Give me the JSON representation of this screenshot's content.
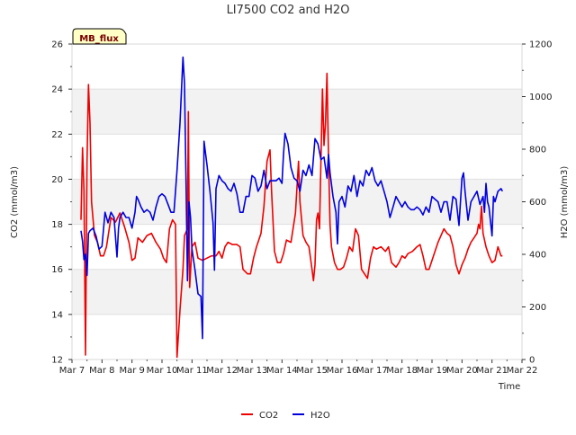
{
  "chart_data": {
    "type": "line",
    "title": "LI7500 CO2 and H2O",
    "badge": "MB_flux",
    "xlabel": "Time",
    "ylabel_left": "CO2 (mmol/m3)",
    "ylabel_right": "H2O (mmol/m3)",
    "x_range": [
      7,
      22
    ],
    "x_ticks": [
      7,
      8,
      9,
      10,
      11,
      12,
      13,
      14,
      15,
      16,
      17,
      18,
      19,
      20,
      21,
      22
    ],
    "x_tick_labels": [
      "Mar 7",
      "Mar 8",
      "Mar 9",
      "Mar 10",
      "Mar 11",
      "Mar 12",
      "Mar 13",
      "Mar 14",
      "Mar 15",
      "Mar 16",
      "Mar 17",
      "Mar 18",
      "Mar 19",
      "Mar 20",
      "Mar 21",
      "Mar 22"
    ],
    "ylim_left": [
      12,
      26
    ],
    "y_ticks_left": [
      12,
      14,
      16,
      18,
      20,
      22,
      24,
      26
    ],
    "y_tick_labels_left": [
      "12",
      "14",
      "16",
      "18",
      "20",
      "22",
      "24",
      "26"
    ],
    "ylim_right": [
      0,
      1200
    ],
    "y_ticks_right": [
      0,
      200,
      400,
      600,
      800,
      1000,
      1200
    ],
    "y_tick_labels_right": [
      "0",
      "200",
      "400",
      "600",
      "800",
      "1000",
      "1200"
    ],
    "series": [
      {
        "name": "CO2",
        "axis": "left",
        "color": "#ee0000",
        "points": [
          [
            7.3,
            18.2
          ],
          [
            7.35,
            21.4
          ],
          [
            7.4,
            19.5
          ],
          [
            7.45,
            12.2
          ],
          [
            7.5,
            20.8
          ],
          [
            7.55,
            24.2
          ],
          [
            7.6,
            22.5
          ],
          [
            7.65,
            19.0
          ],
          [
            7.75,
            17.5
          ],
          [
            7.85,
            17.2
          ],
          [
            7.95,
            16.6
          ],
          [
            8.05,
            16.6
          ],
          [
            8.15,
            17.0
          ],
          [
            8.3,
            18.3
          ],
          [
            8.45,
            18.1
          ],
          [
            8.6,
            18.5
          ],
          [
            8.75,
            17.9
          ],
          [
            8.9,
            17.2
          ],
          [
            9.0,
            16.4
          ],
          [
            9.1,
            16.5
          ],
          [
            9.2,
            17.4
          ],
          [
            9.35,
            17.2
          ],
          [
            9.5,
            17.5
          ],
          [
            9.65,
            17.6
          ],
          [
            9.8,
            17.2
          ],
          [
            9.95,
            16.9
          ],
          [
            10.05,
            16.5
          ],
          [
            10.15,
            16.3
          ],
          [
            10.25,
            17.8
          ],
          [
            10.35,
            18.2
          ],
          [
            10.45,
            18.0
          ],
          [
            10.5,
            12.1
          ],
          [
            10.6,
            14.2
          ],
          [
            10.7,
            16.0
          ],
          [
            10.75,
            17.5
          ],
          [
            10.85,
            17.8
          ],
          [
            10.88,
            23.0
          ],
          [
            10.92,
            15.2
          ],
          [
            11.0,
            17.0
          ],
          [
            11.1,
            17.2
          ],
          [
            11.2,
            16.5
          ],
          [
            11.35,
            16.4
          ],
          [
            11.5,
            16.5
          ],
          [
            11.65,
            16.6
          ],
          [
            11.8,
            16.6
          ],
          [
            11.9,
            16.8
          ],
          [
            12.0,
            16.5
          ],
          [
            12.1,
            17.0
          ],
          [
            12.2,
            17.2
          ],
          [
            12.35,
            17.1
          ],
          [
            12.5,
            17.1
          ],
          [
            12.6,
            17.0
          ],
          [
            12.7,
            16.0
          ],
          [
            12.85,
            15.8
          ],
          [
            12.95,
            15.8
          ],
          [
            13.05,
            16.5
          ],
          [
            13.15,
            17.0
          ],
          [
            13.3,
            17.6
          ],
          [
            13.4,
            18.8
          ],
          [
            13.5,
            20.8
          ],
          [
            13.6,
            21.3
          ],
          [
            13.65,
            19.5
          ],
          [
            13.75,
            16.8
          ],
          [
            13.85,
            16.3
          ],
          [
            13.95,
            16.3
          ],
          [
            14.05,
            16.7
          ],
          [
            14.15,
            17.3
          ],
          [
            14.3,
            17.2
          ],
          [
            14.45,
            18.5
          ],
          [
            14.55,
            20.8
          ],
          [
            14.6,
            19.0
          ],
          [
            14.7,
            17.5
          ],
          [
            14.8,
            17.2
          ],
          [
            14.9,
            17.0
          ],
          [
            15.0,
            16.0
          ],
          [
            15.05,
            15.5
          ],
          [
            15.1,
            16.2
          ],
          [
            15.15,
            18.2
          ],
          [
            15.2,
            18.5
          ],
          [
            15.25,
            17.8
          ],
          [
            15.3,
            21.0
          ],
          [
            15.35,
            24.0
          ],
          [
            15.4,
            21.5
          ],
          [
            15.45,
            22.5
          ],
          [
            15.5,
            24.7
          ],
          [
            15.55,
            21.0
          ],
          [
            15.6,
            18.0
          ],
          [
            15.65,
            17.0
          ],
          [
            15.75,
            16.3
          ],
          [
            15.85,
            16.0
          ],
          [
            15.95,
            16.0
          ],
          [
            16.05,
            16.1
          ],
          [
            16.15,
            16.5
          ],
          [
            16.25,
            17.0
          ],
          [
            16.35,
            16.8
          ],
          [
            16.45,
            17.8
          ],
          [
            16.55,
            17.5
          ],
          [
            16.65,
            16.0
          ],
          [
            16.75,
            15.8
          ],
          [
            16.85,
            15.6
          ],
          [
            16.95,
            16.5
          ],
          [
            17.05,
            17.0
          ],
          [
            17.15,
            16.9
          ],
          [
            17.3,
            17.0
          ],
          [
            17.45,
            16.8
          ],
          [
            17.55,
            17.0
          ],
          [
            17.65,
            16.3
          ],
          [
            17.8,
            16.1
          ],
          [
            17.9,
            16.3
          ],
          [
            18.0,
            16.6
          ],
          [
            18.1,
            16.5
          ],
          [
            18.2,
            16.7
          ],
          [
            18.35,
            16.8
          ],
          [
            18.5,
            17.0
          ],
          [
            18.6,
            17.1
          ],
          [
            18.7,
            16.6
          ],
          [
            18.8,
            16.0
          ],
          [
            18.9,
            16.0
          ],
          [
            19.0,
            16.4
          ],
          [
            19.1,
            16.8
          ],
          [
            19.2,
            17.2
          ],
          [
            19.3,
            17.5
          ],
          [
            19.4,
            17.8
          ],
          [
            19.5,
            17.6
          ],
          [
            19.6,
            17.5
          ],
          [
            19.7,
            17.0
          ],
          [
            19.8,
            16.2
          ],
          [
            19.9,
            15.8
          ],
          [
            20.0,
            16.2
          ],
          [
            20.1,
            16.5
          ],
          [
            20.2,
            16.9
          ],
          [
            20.3,
            17.2
          ],
          [
            20.4,
            17.4
          ],
          [
            20.5,
            17.6
          ],
          [
            20.55,
            18.0
          ],
          [
            20.6,
            17.8
          ],
          [
            20.65,
            18.8
          ],
          [
            20.7,
            17.6
          ],
          [
            20.8,
            17.0
          ],
          [
            20.9,
            16.6
          ],
          [
            21.0,
            16.3
          ],
          [
            21.1,
            16.4
          ],
          [
            21.2,
            17.0
          ],
          [
            21.3,
            16.6
          ],
          [
            21.35,
            16.6
          ]
        ]
      },
      {
        "name": "H2O",
        "axis": "right",
        "color": "#0000dd",
        "points": [
          [
            7.3,
            490
          ],
          [
            7.35,
            450
          ],
          [
            7.4,
            380
          ],
          [
            7.45,
            400
          ],
          [
            7.5,
            320
          ],
          [
            7.55,
            480
          ],
          [
            7.6,
            490
          ],
          [
            7.7,
            500
          ],
          [
            7.8,
            470
          ],
          [
            7.9,
            420
          ],
          [
            8.0,
            430
          ],
          [
            8.1,
            560
          ],
          [
            8.2,
            520
          ],
          [
            8.3,
            560
          ],
          [
            8.4,
            540
          ],
          [
            8.5,
            390
          ],
          [
            8.55,
            500
          ],
          [
            8.6,
            540
          ],
          [
            8.7,
            560
          ],
          [
            8.8,
            540
          ],
          [
            8.9,
            540
          ],
          [
            9.0,
            500
          ],
          [
            9.1,
            560
          ],
          [
            9.15,
            620
          ],
          [
            9.2,
            610
          ],
          [
            9.3,
            580
          ],
          [
            9.4,
            560
          ],
          [
            9.5,
            570
          ],
          [
            9.6,
            560
          ],
          [
            9.7,
            530
          ],
          [
            9.8,
            580
          ],
          [
            9.9,
            620
          ],
          [
            10.0,
            630
          ],
          [
            10.1,
            620
          ],
          [
            10.2,
            590
          ],
          [
            10.3,
            560
          ],
          [
            10.4,
            560
          ],
          [
            10.5,
            720
          ],
          [
            10.6,
            900
          ],
          [
            10.7,
            1150
          ],
          [
            10.75,
            1050
          ],
          [
            10.8,
            680
          ],
          [
            10.85,
            300
          ],
          [
            10.9,
            600
          ],
          [
            10.95,
            540
          ],
          [
            11.0,
            420
          ],
          [
            11.1,
            340
          ],
          [
            11.2,
            250
          ],
          [
            11.3,
            240
          ],
          [
            11.35,
            80
          ],
          [
            11.4,
            830
          ],
          [
            11.5,
            740
          ],
          [
            11.6,
            640
          ],
          [
            11.7,
            520
          ],
          [
            11.75,
            340
          ],
          [
            11.8,
            650
          ],
          [
            11.9,
            700
          ],
          [
            12.0,
            680
          ],
          [
            12.1,
            670
          ],
          [
            12.2,
            650
          ],
          [
            12.3,
            640
          ],
          [
            12.4,
            670
          ],
          [
            12.5,
            630
          ],
          [
            12.6,
            560
          ],
          [
            12.7,
            560
          ],
          [
            12.8,
            620
          ],
          [
            12.9,
            620
          ],
          [
            13.0,
            700
          ],
          [
            13.1,
            690
          ],
          [
            13.2,
            640
          ],
          [
            13.3,
            660
          ],
          [
            13.4,
            720
          ],
          [
            13.5,
            650
          ],
          [
            13.6,
            680
          ],
          [
            13.7,
            680
          ],
          [
            13.8,
            680
          ],
          [
            13.9,
            690
          ],
          [
            14.0,
            670
          ],
          [
            14.05,
            780
          ],
          [
            14.1,
            860
          ],
          [
            14.2,
            820
          ],
          [
            14.3,
            730
          ],
          [
            14.4,
            690
          ],
          [
            14.5,
            680
          ],
          [
            14.6,
            640
          ],
          [
            14.7,
            720
          ],
          [
            14.8,
            700
          ],
          [
            14.9,
            740
          ],
          [
            15.0,
            700
          ],
          [
            15.1,
            840
          ],
          [
            15.2,
            820
          ],
          [
            15.3,
            760
          ],
          [
            15.4,
            770
          ],
          [
            15.5,
            690
          ],
          [
            15.55,
            780
          ],
          [
            15.6,
            710
          ],
          [
            15.7,
            620
          ],
          [
            15.8,
            560
          ],
          [
            15.85,
            440
          ],
          [
            15.9,
            600
          ],
          [
            16.0,
            620
          ],
          [
            16.1,
            580
          ],
          [
            16.2,
            660
          ],
          [
            16.3,
            640
          ],
          [
            16.4,
            700
          ],
          [
            16.5,
            620
          ],
          [
            16.6,
            680
          ],
          [
            16.7,
            660
          ],
          [
            16.8,
            720
          ],
          [
            16.9,
            700
          ],
          [
            17.0,
            730
          ],
          [
            17.1,
            680
          ],
          [
            17.2,
            660
          ],
          [
            17.3,
            680
          ],
          [
            17.4,
            640
          ],
          [
            17.5,
            600
          ],
          [
            17.6,
            540
          ],
          [
            17.7,
            580
          ],
          [
            17.8,
            620
          ],
          [
            17.9,
            600
          ],
          [
            18.0,
            580
          ],
          [
            18.1,
            600
          ],
          [
            18.2,
            580
          ],
          [
            18.3,
            570
          ],
          [
            18.4,
            570
          ],
          [
            18.5,
            580
          ],
          [
            18.6,
            570
          ],
          [
            18.7,
            550
          ],
          [
            18.8,
            580
          ],
          [
            18.9,
            560
          ],
          [
            19.0,
            620
          ],
          [
            19.1,
            610
          ],
          [
            19.2,
            600
          ],
          [
            19.3,
            560
          ],
          [
            19.4,
            600
          ],
          [
            19.5,
            600
          ],
          [
            19.6,
            530
          ],
          [
            19.7,
            620
          ],
          [
            19.8,
            610
          ],
          [
            19.9,
            510
          ],
          [
            20.0,
            690
          ],
          [
            20.05,
            710
          ],
          [
            20.1,
            640
          ],
          [
            20.2,
            530
          ],
          [
            20.3,
            600
          ],
          [
            20.4,
            620
          ],
          [
            20.5,
            640
          ],
          [
            20.6,
            590
          ],
          [
            20.7,
            620
          ],
          [
            20.75,
            560
          ],
          [
            20.8,
            670
          ],
          [
            20.85,
            600
          ],
          [
            20.9,
            580
          ],
          [
            21.0,
            470
          ],
          [
            21.05,
            620
          ],
          [
            21.1,
            600
          ],
          [
            21.2,
            640
          ],
          [
            21.3,
            650
          ],
          [
            21.35,
            640
          ]
        ]
      }
    ],
    "legend": [
      "CO2",
      "H2O"
    ],
    "legend_placement": "bottom-center",
    "grid": "horizontal-bands"
  }
}
